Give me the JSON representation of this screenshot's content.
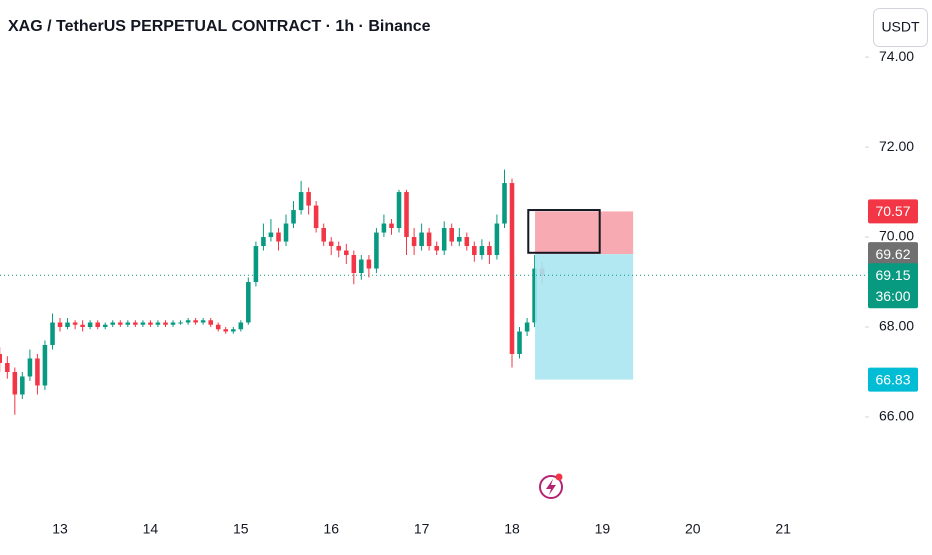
{
  "chart_data": {
    "type": "candlestick",
    "title": "XAG / TetherUS PERPETUAL CONTRACT · 1h · Binance",
    "currency": "USDT",
    "up_color": "#089981",
    "down_color": "#f23645",
    "x": [
      12.333,
      12.417,
      12.5,
      12.583,
      12.667,
      12.75,
      12.833,
      12.917,
      13.0,
      13.083,
      13.167,
      13.25,
      13.333,
      13.417,
      13.5,
      13.583,
      13.667,
      13.75,
      13.833,
      13.917,
      14.0,
      14.083,
      14.167,
      14.25,
      14.333,
      14.417,
      14.5,
      14.583,
      14.667,
      14.75,
      14.833,
      14.917,
      15.0,
      15.083,
      15.167,
      15.25,
      15.333,
      15.417,
      15.5,
      15.583,
      15.667,
      15.75,
      15.833,
      15.917,
      16.0,
      16.083,
      16.167,
      16.25,
      16.333,
      16.417,
      16.5,
      16.583,
      16.667,
      16.75,
      16.833,
      16.917,
      17.0,
      17.083,
      17.167,
      17.25,
      17.333,
      17.417,
      17.5,
      17.583,
      17.667,
      17.75,
      17.833,
      17.917,
      18.0,
      18.083,
      18.167,
      18.25,
      18.333
    ],
    "open": [
      67.4,
      67.2,
      67.0,
      66.5,
      66.9,
      67.3,
      66.7,
      67.6,
      68.1,
      68.0,
      68.1,
      68.05,
      68.0,
      68.1,
      68.0,
      68.05,
      68.1,
      68.05,
      68.1,
      68.05,
      68.1,
      68.05,
      68.1,
      68.05,
      68.1,
      68.1,
      68.15,
      68.1,
      68.15,
      68.05,
      67.95,
      67.9,
      67.95,
      68.1,
      69.0,
      69.8,
      70.0,
      70.1,
      69.9,
      70.3,
      70.6,
      71.0,
      70.7,
      70.2,
      69.9,
      69.8,
      69.7,
      69.6,
      69.2,
      69.5,
      69.3,
      70.1,
      70.3,
      70.2,
      71.0,
      70.0,
      69.8,
      70.1,
      69.8,
      69.7,
      70.2,
      69.9,
      70.0,
      69.8,
      69.6,
      69.8,
      69.6,
      70.3,
      71.2,
      67.4,
      67.9,
      68.1,
      69.3
    ],
    "high": [
      67.55,
      67.35,
      67.1,
      67.0,
      67.5,
      67.4,
      67.7,
      68.3,
      68.2,
      68.2,
      68.15,
      68.15,
      68.15,
      68.15,
      68.1,
      68.15,
      68.15,
      68.15,
      68.15,
      68.15,
      68.15,
      68.15,
      68.15,
      68.15,
      68.15,
      68.2,
      68.2,
      68.2,
      68.2,
      68.1,
      68.0,
      68.0,
      68.15,
      69.1,
      69.9,
      70.3,
      70.4,
      70.2,
      70.5,
      70.8,
      71.25,
      71.1,
      70.8,
      70.3,
      70.0,
      69.9,
      69.85,
      69.7,
      69.6,
      69.6,
      70.2,
      70.5,
      70.4,
      71.05,
      71.05,
      70.2,
      70.3,
      70.2,
      69.9,
      70.35,
      70.3,
      70.2,
      70.1,
      69.9,
      69.95,
      69.9,
      70.5,
      71.5,
      71.3,
      68.0,
      68.2,
      69.6,
      69.45
    ],
    "low": [
      67.0,
      66.85,
      66.05,
      66.4,
      66.8,
      66.5,
      66.6,
      67.5,
      67.9,
      67.95,
      67.95,
      67.9,
      67.95,
      67.95,
      67.95,
      68.0,
      68.0,
      68.0,
      68.0,
      68.0,
      68.0,
      68.0,
      68.0,
      68.0,
      68.05,
      68.05,
      68.05,
      68.05,
      68.0,
      67.9,
      67.85,
      67.85,
      67.9,
      68.05,
      68.9,
      69.7,
      69.9,
      69.7,
      69.8,
      70.2,
      70.5,
      70.5,
      70.1,
      69.8,
      69.6,
      69.55,
      69.4,
      68.95,
      69.05,
      69.1,
      69.2,
      70.0,
      70.05,
      70.1,
      69.6,
      69.6,
      69.7,
      69.7,
      69.6,
      69.6,
      69.8,
      69.8,
      69.7,
      69.45,
      69.5,
      69.4,
      69.5,
      70.2,
      67.1,
      67.3,
      67.8,
      68.0,
      68.95
    ],
    "close": [
      67.2,
      67.0,
      66.5,
      66.9,
      67.3,
      66.7,
      67.6,
      68.1,
      68.0,
      68.1,
      68.05,
      68.0,
      68.1,
      68.0,
      68.05,
      68.1,
      68.05,
      68.1,
      68.05,
      68.1,
      68.05,
      68.1,
      68.05,
      68.1,
      68.1,
      68.15,
      68.1,
      68.15,
      68.05,
      67.95,
      67.9,
      67.95,
      68.1,
      69.0,
      69.8,
      70.0,
      70.1,
      69.9,
      70.3,
      70.6,
      71.0,
      70.7,
      70.2,
      69.9,
      69.8,
      69.7,
      69.6,
      69.2,
      69.5,
      69.3,
      70.1,
      70.3,
      70.2,
      71.0,
      70.0,
      69.8,
      70.1,
      69.8,
      69.7,
      70.2,
      69.9,
      70.0,
      69.8,
      69.6,
      69.8,
      69.6,
      70.3,
      71.2,
      67.4,
      67.9,
      68.1,
      69.3,
      69.15
    ],
    "xlim": [
      12.336,
      21.905
    ],
    "ylim": [
      63.82,
      75.27
    ],
    "xticks": [
      13,
      14,
      15,
      16,
      17,
      18,
      19,
      20,
      21
    ],
    "yticks": [
      {
        "value": 66,
        "label": "66.00"
      },
      {
        "value": 68,
        "label": "68.00"
      },
      {
        "value": 70,
        "label": "70.00"
      },
      {
        "value": 72,
        "label": "72.00"
      },
      {
        "value": 74,
        "label": "74.00"
      }
    ],
    "last_price_color": "#089981",
    "countdown": "36:00",
    "position": {
      "x": [
        18.255,
        19.34
      ],
      "entry": 69.62,
      "stop": 70.57,
      "target": 66.83,
      "stop_color": "#f7a1aa",
      "target_color": "#a9e6f0",
      "stop_label_color": "#f23645",
      "entry_label_color": "#707070",
      "target_label_color": "#00bcd4"
    },
    "rectangle": {
      "x": [
        18.18,
        18.97
      ],
      "y": [
        69.65,
        70.6
      ]
    }
  }
}
